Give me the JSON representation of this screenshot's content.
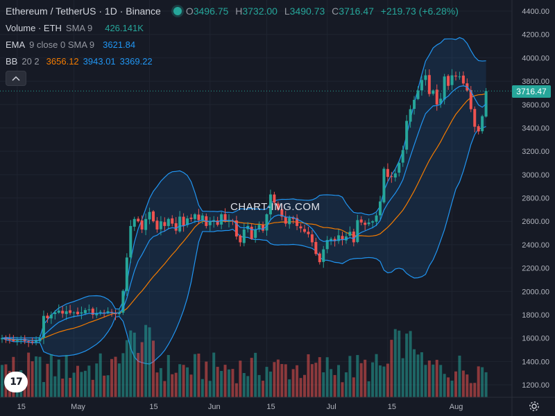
{
  "header": {
    "symbol": "Ethereum / TetherUS · 1D · Binance",
    "ohlc": {
      "o_label": "O",
      "o": "3496.75",
      "h_label": "H",
      "h": "3732.00",
      "l_label": "L",
      "l": "3490.73",
      "c_label": "C",
      "c": "3716.47",
      "change": "+219.73 (+6.28%)"
    }
  },
  "indicators": {
    "volume": {
      "name": "Volume · ETH",
      "params": "SMA 9",
      "value": "426.141K"
    },
    "ema": {
      "name": "EMA",
      "params": "9 close 0 SMA 9",
      "value": "3621.84"
    },
    "bb": {
      "name": "BB",
      "params": "20 2",
      "basis": "3656.12",
      "upper": "3943.01",
      "lower": "3369.22"
    }
  },
  "watermark": "CHART-IMG.COM",
  "last_price_label": "3716.47",
  "colors": {
    "up": "#26a69a",
    "down": "#ef5350",
    "background": "#161a25",
    "ema": "#f57c00",
    "bb_basis": "#f57c00",
    "bb_bands": "#2196f3",
    "text": "#d1d4dc"
  },
  "chart_data": {
    "type": "candlestick",
    "pair": "ETH/USDT",
    "interval": "1D",
    "y_axis_ticks": [
      "4400.00",
      "4200.00",
      "4000.00",
      "3800.00",
      "3600.00",
      "3400.00",
      "3200.00",
      "3000.00",
      "2800.00",
      "2600.00",
      "2400.00",
      "2200.00",
      "2000.00",
      "1800.00",
      "1600.00",
      "1400.00",
      "1200.00"
    ],
    "x_axis_ticks": [
      "15",
      "May",
      "15",
      "Jun",
      "15",
      "Jul",
      "15",
      "Aug"
    ],
    "ylim": [
      1100,
      4500
    ],
    "close": [
      1600,
      1590,
      1585,
      1575,
      1580,
      1590,
      1575,
      1570,
      1565,
      1580,
      1600,
      1790,
      1770,
      1800,
      1820,
      1835,
      1810,
      1830,
      1815,
      1820,
      1805,
      1820,
      1840,
      1845,
      1800,
      1815,
      1825,
      1810,
      1830,
      1820,
      1805,
      1820,
      2005,
      2290,
      2560,
      2620,
      2600,
      2530,
      2620,
      2680,
      2600,
      2530,
      2600,
      2560,
      2620,
      2580,
      2520,
      2640,
      2560,
      2625,
      2620,
      2660,
      2610,
      2650,
      2560,
      2600,
      2610,
      2570,
      2660,
      2600,
      2610,
      2600,
      2470,
      2420,
      2530,
      2560,
      2450,
      2530,
      2570,
      2520,
      2660,
      2830,
      2760,
      2700,
      2640,
      2580,
      2630,
      2620,
      2560,
      2540,
      2510,
      2490,
      2420,
      2320,
      2250,
      2360,
      2440,
      2450,
      2430,
      2480,
      2440,
      2470,
      2510,
      2420,
      2610,
      2590,
      2570,
      2590,
      2600,
      2650,
      2770,
      3050,
      2980,
      2980,
      3010,
      3100,
      3210,
      3460,
      3560,
      3640,
      3720,
      3810,
      3850,
      3690,
      3720,
      3600,
      3650,
      3840,
      3760,
      3850,
      3840,
      3840,
      3780,
      3720,
      3560,
      3410,
      3370,
      3500,
      3716
    ],
    "ema9_last": 3621.84,
    "bb20_last": {
      "basis": 3656.12,
      "upper": 3943.01,
      "lower": 3369.22
    },
    "volume_sma9_last": "426.141K"
  }
}
